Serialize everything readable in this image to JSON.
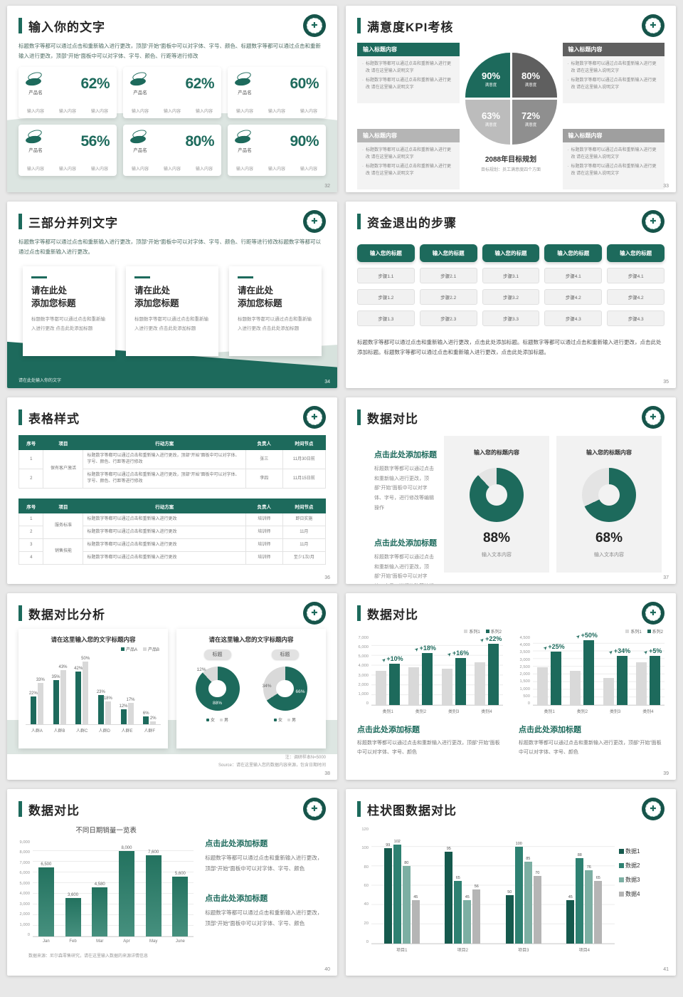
{
  "colors": {
    "green": "#1d6a5c",
    "gray_bar": "#d9d9d9",
    "dark_gray": "#5f5f5f",
    "light_gray": "#bcbcbc",
    "mid_gray": "#8f8f8f"
  },
  "s32": {
    "title": "输入你的文字",
    "body": "标题数字等都可以通过点击和重新输入进行更改，顶部“开始”面板中可以对字体、字号、颜色、标题数字等都可以通过点击和重新输入进行更改，顶部“开始”面板中可以对字体、字号、颜色、行距等进行修改",
    "card_label": "产品名",
    "item": "输入内容",
    "values": [
      "62%",
      "62%",
      "60%",
      "56%",
      "80%",
      "90%"
    ],
    "page": "32"
  },
  "s33": {
    "title": "满意度KPI考核",
    "box_header": "输入标题内容",
    "bullet": "标题数字等都可以通过点击和重新输入进行更改 请在这里输入说明文字",
    "caption": "2088年目标规划",
    "caption_sub": "目标规划：员工满意度四个方面",
    "page": "33"
  },
  "s34": {
    "title": "三部分并列文字",
    "body": "标题数字等都可以通过点击和重新输入进行更改，顶部“开始”面板中可以对字体、字号、颜色、行距等进行修改标题数字等都可以通过点击和重新输入进行更改。",
    "card_title1": "请在此处",
    "card_title2": "添加您标题",
    "card_body": "标题数字等都可以通过点击和重新输入进行更改 点击此处添加标题",
    "footer": "请在此处输入你的文字",
    "page": "34"
  },
  "s35": {
    "title": "资金退出的步骤",
    "col_header": "输入您的标题",
    "steps": [
      [
        "步骤1.1",
        "步骤1.2",
        "步骤1.3"
      ],
      [
        "步骤2.1",
        "步骤2.2",
        "步骤2.3"
      ],
      [
        "步骤3.1",
        "步骤3.2",
        "步骤3.3"
      ],
      [
        "步骤4.1",
        "步骤4.2",
        "步骤4.3"
      ],
      [
        "步骤4.1",
        "步骤4.2",
        "步骤4.3"
      ]
    ],
    "body": "标题数字等都可以通过点击和重新输入进行更改，点击此处添加标题。标题数字等都可以通过点击和重新输入进行更改，点击此处添加标题。标题数字等都可以通过点击和重新输入进行更改，点击此处添加标题。",
    "page": "35"
  },
  "s36": {
    "title": "表格样式",
    "headers": [
      "序号",
      "项目",
      "行动方案",
      "负责人",
      "时间节点"
    ],
    "t1_action": "标题数字等都可以通过点击和重新输入进行更改，顶部“开始”面板中可以对字体、字号、颜色、行距等进行修改",
    "t1": {
      "proj": "保有客户激活",
      "rows": [
        {
          "no": "1",
          "owner": "张三",
          "time": "11月30日前"
        },
        {
          "no": "2",
          "owner": "李四",
          "time": "11月15日前"
        }
      ]
    },
    "t2_action": "标题数字等都可以通过点击和重新输入进行更改",
    "t2": {
      "proj1": "服务标准",
      "proj2": "销售技能",
      "rows": [
        {
          "no": "1",
          "owner": "培训师",
          "time": "即日实施"
        },
        {
          "no": "2",
          "owner": "培训师",
          "time": "11月"
        },
        {
          "no": "3",
          "owner": "培训师",
          "time": "11月"
        },
        {
          "no": "4",
          "owner": "培训师",
          "time": "至少1次/月"
        }
      ]
    },
    "page": "36"
  },
  "s37": {
    "title": "数据对比",
    "block_heading": "点击此处添加标题",
    "block_body": "标题数字等都可以通过点击和重新输入进行更改，顶部“开始”面板中可以对字体、字号，进行修改等编辑操作",
    "card_title": "输入您的标题内容",
    "caption": "输入文本内容",
    "page": "37"
  },
  "s38": {
    "title": "数据对比分析",
    "chart_title": "请在这里输入您的文字标题内容",
    "donut_tag": "标题",
    "note1": "注：调研样本N=5000",
    "note2": "Source：请在这里输入您的数据内容来源，包含日期时间",
    "page": "38"
  },
  "s39": {
    "title": "数据对比",
    "heading": "点击此处添加标题",
    "body": "标题数字等都可以通过点击和重新输入进行更改，顶部“开始”面板中可以对字体、字号、颜色",
    "page": "39"
  },
  "s40": {
    "title": "数据对比",
    "source": "数据来源：尼尔森零售研究，请在这里输入数据的来源详情信息",
    "heading": "点击此处添加标题",
    "body": "标题数字等都可以通过点击和重新输入进行更改，顶部“开始”面板中可以对字体、字号、颜色",
    "page": "40"
  },
  "s41": {
    "title": "柱状图数据对比",
    "page": "41"
  },
  "chart_data": [
    {
      "id": "kpi-pie",
      "type": "pie",
      "title": "2088年目标规划",
      "slices": [
        {
          "value": 90,
          "display": "90%",
          "label": "满意度",
          "color": "#1d6a5c"
        },
        {
          "value": 80,
          "display": "80%",
          "label": "满意度",
          "color": "#5f5f5f"
        },
        {
          "value": 63,
          "display": "63%",
          "label": "满意度",
          "color": "#bcbcbc"
        },
        {
          "value": 72,
          "display": "72%",
          "label": "满意度",
          "color": "#8f8f8f"
        }
      ]
    },
    {
      "id": "d37a",
      "type": "donut",
      "value": 88,
      "display": "88%",
      "color": "#1d6a5c",
      "track": "#e4e4e4",
      "hole": "#f2f2f2"
    },
    {
      "id": "d37b",
      "type": "donut",
      "value": 68,
      "display": "68%",
      "color": "#1d6a5c",
      "track": "#e4e4e4",
      "hole": "#f2f2f2"
    },
    {
      "id": "c38",
      "type": "bar",
      "title": "请在这里输入您的文字标题内容",
      "categories": [
        "人群A",
        "人群B",
        "人群C",
        "人群D",
        "人群E",
        "人群F"
      ],
      "series": [
        {
          "name": "产品A",
          "color": "#1d6a5c",
          "values": [
            22,
            35,
            42,
            23,
            12,
            6
          ],
          "labels": [
            "22%",
            "35%",
            "42%",
            "23%",
            "12%",
            "6%"
          ]
        },
        {
          "name": "产品B",
          "color": "#d9d9d9",
          "values": [
            33,
            43,
            50,
            18,
            17,
            2
          ],
          "labels": [
            "33%",
            "43%",
            "50%",
            "18%",
            "17%",
            "2%"
          ]
        }
      ],
      "ylim": [
        0,
        56
      ],
      "show_labels": true
    },
    {
      "id": "d38a",
      "type": "donut",
      "hole": "#ffffff",
      "legend": [
        "女",
        "男"
      ],
      "slices": [
        {
          "value": 88,
          "display": "88%",
          "color": "#1d6a5c"
        },
        {
          "value": 12,
          "display": "12%",
          "color": "#d9d9d9"
        }
      ]
    },
    {
      "id": "d38b",
      "type": "donut",
      "hole": "#ffffff",
      "legend": [
        "女",
        "男"
      ],
      "slices": [
        {
          "value": 66,
          "display": "66%",
          "color": "#1d6a5c"
        },
        {
          "value": 34,
          "display": "34%",
          "color": "#d9d9d9"
        }
      ]
    },
    {
      "id": "c39a",
      "type": "bar",
      "categories": [
        "类别1",
        "类别2",
        "类别3",
        "类别4"
      ],
      "series": [
        {
          "name": "系列1",
          "color": "#d9d9d9",
          "values": [
            3500,
            3800,
            3700,
            4300
          ]
        },
        {
          "name": "系列2",
          "color": "#1d6a5c",
          "values": [
            4200,
            5300,
            4800,
            6200
          ]
        }
      ],
      "ylim": [
        0,
        7000
      ],
      "yticks": [
        "7,000",
        "6,000",
        "5,000",
        "4,000",
        "3,000",
        "2,000",
        "1,000",
        "0"
      ],
      "growth": [
        "+10%",
        "+18%",
        "+16%",
        "+22%"
      ]
    },
    {
      "id": "c39b",
      "type": "bar",
      "categories": [
        "类别1",
        "类别2",
        "类别3",
        "类别4"
      ],
      "series": [
        {
          "name": "系列1",
          "color": "#d9d9d9",
          "values": [
            2450,
            2250,
            1750,
            2800
          ]
        },
        {
          "name": "系列2",
          "color": "#1d6a5c",
          "values": [
            3500,
            4200,
            3200,
            3200
          ]
        }
      ],
      "ylim": [
        0,
        4500
      ],
      "yticks": [
        "4,500",
        "4,000",
        "3,500",
        "3,000",
        "2,500",
        "2,000",
        "1,500",
        "1,000",
        "500",
        "0"
      ],
      "growth": [
        "+25%",
        "+50%",
        "+34%",
        "+5%"
      ]
    },
    {
      "id": "c40",
      "type": "bar",
      "title": "不同日期销量一览表",
      "categories": [
        "Jan",
        "Feb",
        "Mar",
        "Apr",
        "May",
        "June"
      ],
      "series": [
        {
          "name": "销量",
          "gradient": [
            "#23725f",
            "#46907e"
          ],
          "values": [
            6500,
            3600,
            4580,
            8000,
            7600,
            5600
          ],
          "labels": [
            "6,500",
            "3,600",
            "4,580",
            "8,000",
            "7,600",
            "5,600"
          ]
        }
      ],
      "ylim": [
        0,
        9000
      ],
      "yticks": [
        "9,000",
        "8,000",
        "7,000",
        "6,000",
        "5,000",
        "4,000",
        "3,000",
        "2,000",
        "1,000",
        "0"
      ],
      "show_labels": true
    },
    {
      "id": "c41",
      "type": "bar",
      "categories": [
        "项目1",
        "项目2",
        "项目3",
        "项目4"
      ],
      "series": [
        {
          "name": "数据1",
          "color": "#15594d",
          "values": [
            99,
            95,
            50,
            45
          ]
        },
        {
          "name": "数据2",
          "color": "#2e8172",
          "values": [
            102,
            65,
            100,
            88
          ]
        },
        {
          "name": "数据3",
          "color": "#7cafa3",
          "values": [
            80,
            45,
            85,
            76
          ]
        },
        {
          "name": "数据4",
          "color": "#b5b5b5",
          "values": [
            45,
            56,
            70,
            65
          ]
        }
      ],
      "ylim": [
        0,
        120
      ],
      "yticks": [
        "120",
        "100",
        "80",
        "60",
        "40",
        "20",
        "0"
      ],
      "show_labels": true
    }
  ]
}
